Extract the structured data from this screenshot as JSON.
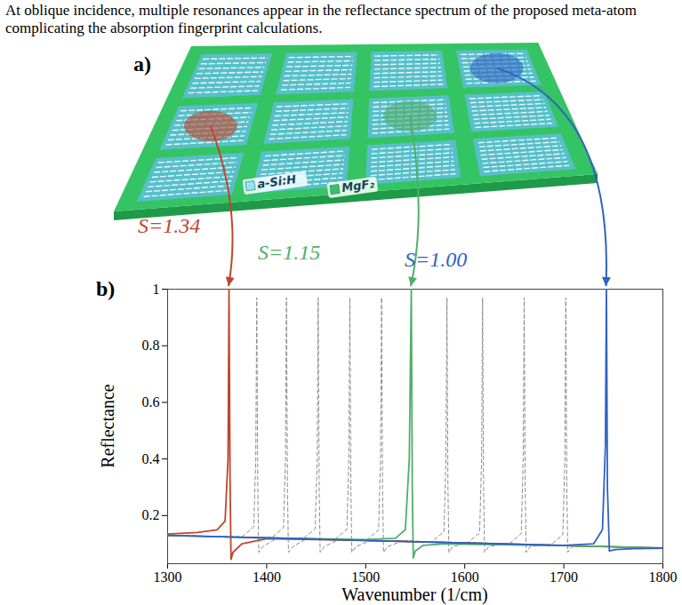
{
  "caption": "At oblique incidence, multiple resonances appear in the reflectance spectrum of the proposed meta-atom complicating the absorption fingerprint calculations.",
  "panel_a": {
    "label": "a)",
    "materials": [
      "a-Si:H",
      "MgF₂"
    ]
  },
  "chart_data": {
    "type": "line",
    "panel_label": "b)",
    "xlabel": "Wavenumber (1/cm)",
    "ylabel": "Reflectance",
    "xlim": [
      1300,
      1800
    ],
    "ylim": [
      0.03,
      1
    ],
    "xticks": [
      1300,
      1400,
      1500,
      1600,
      1700,
      1800
    ],
    "yticks": [
      0.2,
      0.4,
      0.6,
      0.8,
      1
    ],
    "grid": false,
    "series": [
      {
        "name": "S=1.34",
        "color": "#c0452c",
        "line_style": "solid",
        "x": [
          1300,
          1330,
          1350,
          1358,
          1361,
          1362,
          1363,
          1364,
          1366,
          1375,
          1400,
          1500,
          1600,
          1700,
          1800
        ],
        "values": [
          0.135,
          0.14,
          0.15,
          0.18,
          0.4,
          1.0,
          0.35,
          0.045,
          0.07,
          0.1,
          0.118,
          0.112,
          0.103,
          0.094,
          0.085
        ]
      },
      {
        "name": "S=1.15",
        "color": "#4fae6a",
        "line_style": "solid",
        "x": [
          1300,
          1400,
          1500,
          1530,
          1540,
          1544,
          1546,
          1547,
          1548,
          1550,
          1558,
          1580,
          1700,
          1800
        ],
        "values": [
          0.13,
          0.121,
          0.115,
          0.12,
          0.15,
          0.4,
          1.0,
          0.3,
          0.05,
          0.075,
          0.095,
          0.1,
          0.094,
          0.085
        ]
      },
      {
        "name": "S=1.00",
        "color": "#2f62c4",
        "line_style": "solid",
        "x": [
          1300,
          1400,
          1500,
          1600,
          1700,
          1730,
          1739,
          1742,
          1743,
          1744,
          1746,
          1752,
          1770,
          1800
        ],
        "values": [
          0.13,
          0.121,
          0.112,
          0.103,
          0.095,
          0.1,
          0.15,
          0.45,
          1.0,
          0.3,
          0.075,
          0.08,
          0.083,
          0.085
        ]
      },
      {
        "color": "#8c8c8c",
        "line_style": "dashed",
        "x": [
          1300,
          1375,
          1387,
          1389,
          1390,
          1391,
          1392,
          1396,
          1410,
          1800
        ],
        "values": [
          0.13,
          0.125,
          0.16,
          0.4,
          0.97,
          0.3,
          0.07,
          0.09,
          0.12,
          0.085
        ]
      },
      {
        "color": "#8c8c8c",
        "line_style": "dashed",
        "x": [
          1300,
          1405,
          1417,
          1419,
          1420,
          1421,
          1422,
          1426,
          1440,
          1800
        ],
        "values": [
          0.13,
          0.122,
          0.157,
          0.4,
          0.97,
          0.3,
          0.07,
          0.09,
          0.117,
          0.085
        ]
      },
      {
        "color": "#8c8c8c",
        "line_style": "dashed",
        "x": [
          1300,
          1437,
          1449,
          1451,
          1452,
          1453,
          1454,
          1458,
          1472,
          1800
        ],
        "values": [
          0.13,
          0.119,
          0.154,
          0.4,
          0.97,
          0.3,
          0.07,
          0.09,
          0.114,
          0.085
        ]
      },
      {
        "color": "#8c8c8c",
        "line_style": "dashed",
        "x": [
          1300,
          1469,
          1481,
          1483,
          1484,
          1485,
          1486,
          1490,
          1504,
          1800
        ],
        "values": [
          0.13,
          0.116,
          0.151,
          0.4,
          0.97,
          0.3,
          0.07,
          0.09,
          0.111,
          0.085
        ]
      },
      {
        "color": "#8c8c8c",
        "line_style": "dashed",
        "x": [
          1300,
          1501,
          1513,
          1515,
          1516,
          1517,
          1518,
          1522,
          1536,
          1800
        ],
        "values": [
          0.13,
          0.114,
          0.149,
          0.4,
          0.97,
          0.3,
          0.07,
          0.09,
          0.109,
          0.085
        ]
      },
      {
        "color": "#8c8c8c",
        "line_style": "dashed",
        "x": [
          1300,
          1567,
          1579,
          1581,
          1582,
          1583,
          1584,
          1588,
          1602,
          1800
        ],
        "values": [
          0.13,
          0.108,
          0.143,
          0.4,
          0.97,
          0.3,
          0.07,
          0.09,
          0.103,
          0.085
        ]
      },
      {
        "color": "#8c8c8c",
        "line_style": "dashed",
        "x": [
          1300,
          1603,
          1615,
          1617,
          1618,
          1619,
          1620,
          1624,
          1638,
          1800
        ],
        "values": [
          0.13,
          0.104,
          0.139,
          0.4,
          0.97,
          0.3,
          0.07,
          0.09,
          0.099,
          0.085
        ]
      },
      {
        "color": "#8c8c8c",
        "line_style": "dashed",
        "x": [
          1300,
          1645,
          1657,
          1659,
          1660,
          1661,
          1662,
          1666,
          1680,
          1800
        ],
        "values": [
          0.13,
          0.101,
          0.136,
          0.4,
          0.97,
          0.3,
          0.07,
          0.09,
          0.096,
          0.085
        ]
      },
      {
        "color": "#8c8c8c",
        "line_style": "dashed",
        "x": [
          1300,
          1687,
          1699,
          1701,
          1702,
          1703,
          1704,
          1708,
          1722,
          1800
        ],
        "values": [
          0.13,
          0.097,
          0.132,
          0.4,
          0.97,
          0.3,
          0.07,
          0.09,
          0.092,
          0.085
        ]
      }
    ]
  }
}
